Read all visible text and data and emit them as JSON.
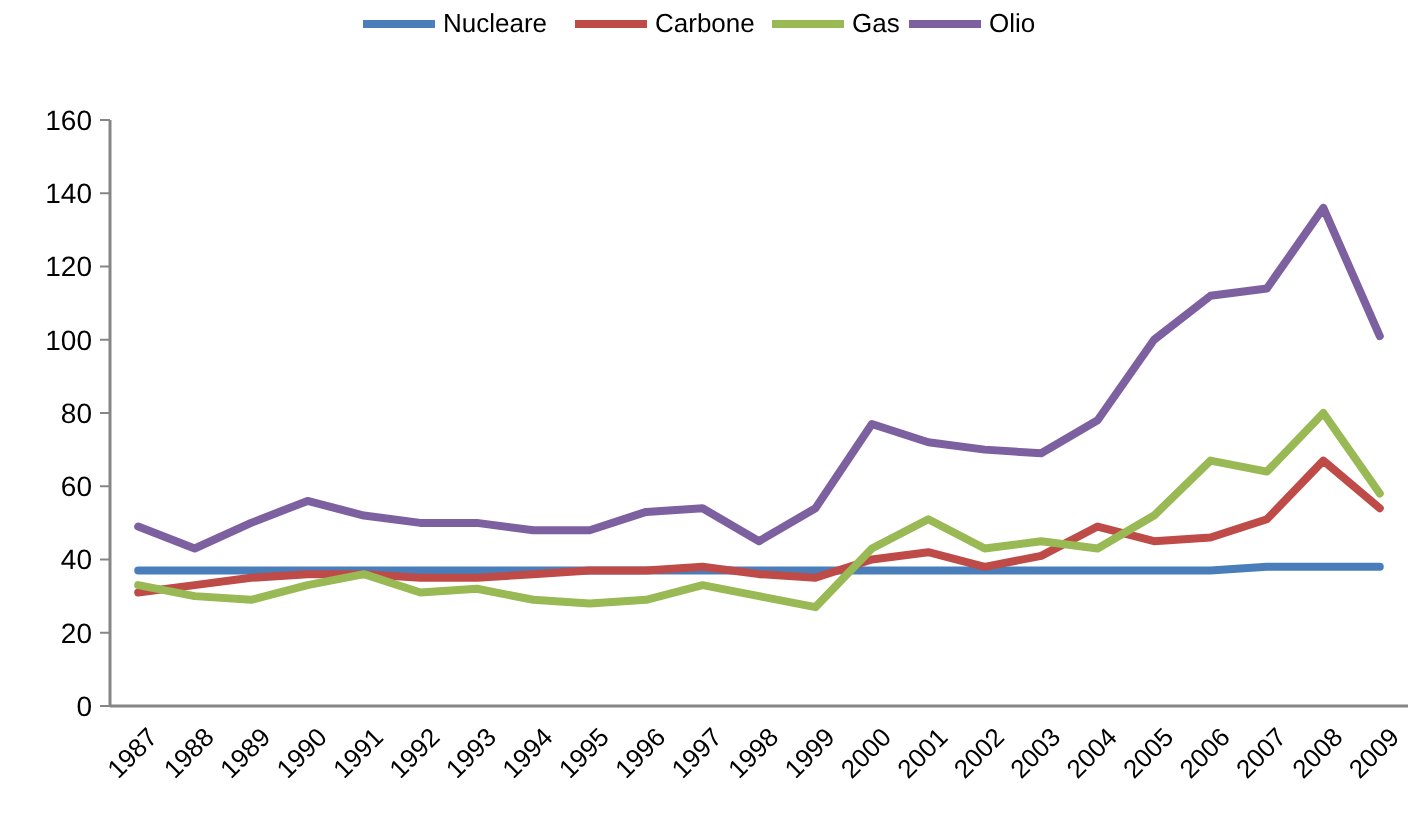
{
  "chart_data": {
    "type": "line",
    "categories": [
      "1987",
      "1988",
      "1989",
      "1990",
      "1991",
      "1992",
      "1993",
      "1994",
      "1995",
      "1996",
      "1997",
      "1998",
      "1999",
      "2000",
      "2001",
      "2002",
      "2003",
      "2004",
      "2005",
      "2006",
      "2007",
      "2008",
      "2009"
    ],
    "series": [
      {
        "name": "Nucleare",
        "color": "#4a7ebb",
        "values": [
          37,
          37,
          37,
          37,
          37,
          37,
          37,
          37,
          37,
          37,
          37,
          37,
          37,
          37,
          37,
          37,
          37,
          37,
          37,
          37,
          38,
          38,
          38
        ]
      },
      {
        "name": "Carbone",
        "color": "#be4b48",
        "values": [
          31,
          33,
          35,
          36,
          36,
          35,
          35,
          36,
          37,
          37,
          38,
          36,
          35,
          40,
          42,
          38,
          41,
          49,
          45,
          46,
          51,
          67,
          54
        ]
      },
      {
        "name": "Gas",
        "color": "#98b954",
        "values": [
          33,
          30,
          29,
          33,
          36,
          31,
          32,
          29,
          28,
          29,
          33,
          30,
          27,
          43,
          51,
          43,
          45,
          43,
          52,
          67,
          64,
          80,
          58
        ]
      },
      {
        "name": "Olio",
        "color": "#7d60a0",
        "values": [
          49,
          43,
          50,
          56,
          52,
          50,
          50,
          48,
          48,
          53,
          54,
          45,
          54,
          77,
          72,
          70,
          69,
          78,
          100,
          112,
          114,
          136,
          101
        ]
      }
    ],
    "ylim": [
      0,
      160
    ],
    "yticks": [
      0,
      20,
      40,
      60,
      80,
      100,
      120,
      140,
      160
    ],
    "grid": false,
    "legend": "top",
    "marker": "none",
    "line_style": "solid"
  }
}
